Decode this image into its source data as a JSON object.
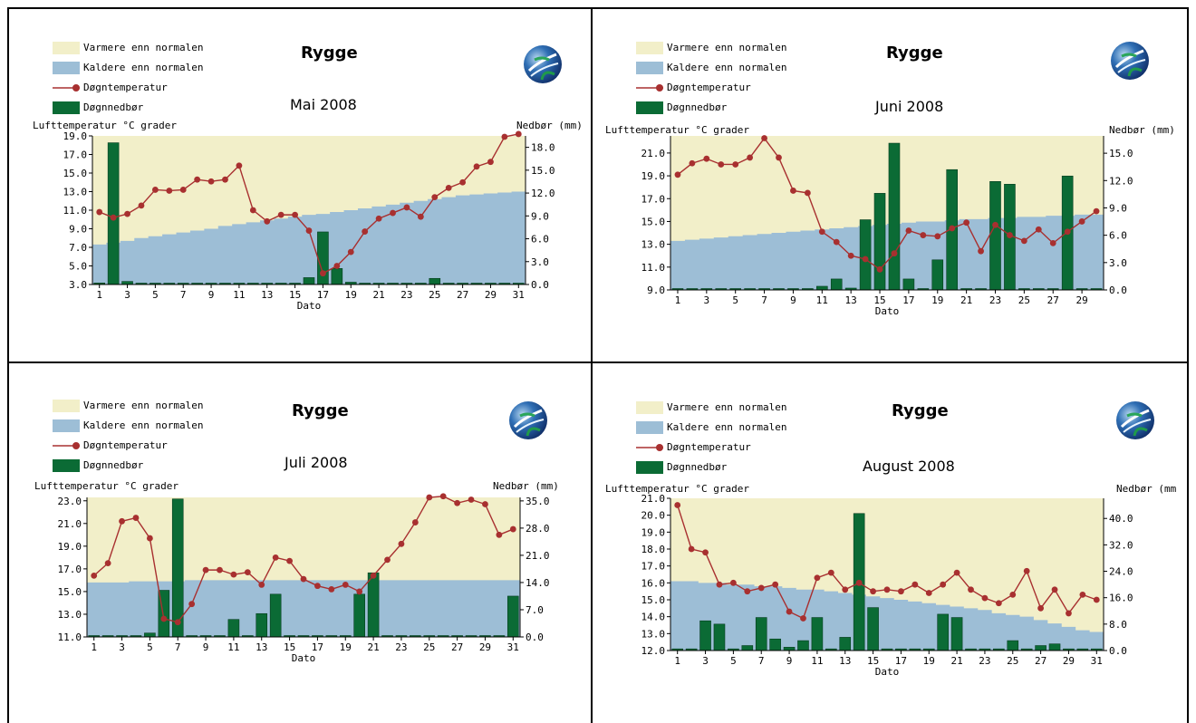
{
  "legend": {
    "warmer": "Varmere enn normalen",
    "colder": "Kaldere enn  normalen",
    "temp": "Døgntemperatur",
    "precip": "Døgnnedbør"
  },
  "colors": {
    "warmer": "#f2efc9",
    "colder": "#9dbed6",
    "temp": "#a83030",
    "precip": "#0b6b35"
  },
  "icons": [
    "globe-logo-icon"
  ],
  "chart_data": [
    {
      "type": "bar+line",
      "title": "Rygge",
      "subtitle": "Mai 2008",
      "ylabel": "Lufttemperatur °C grader",
      "y2label": "Nedbør (mm)",
      "xlabel": "Dato",
      "ylim": [
        3.0,
        19.0
      ],
      "yticks": [
        "19.0",
        "17.0",
        "15.0",
        "13.0",
        "11.0",
        "9.0",
        "7.0",
        "5.0",
        "3.0"
      ],
      "y2lim": [
        0,
        19.5
      ],
      "y2ticks": [
        "18.0",
        "15.0",
        "12.0",
        "9.0",
        "6.0",
        "3.0",
        "0.0"
      ],
      "xticks": [
        "1",
        "3",
        "5",
        "7",
        "9",
        "11",
        "13",
        "15",
        "17",
        "19",
        "21",
        "23",
        "25",
        "27",
        "29",
        "31"
      ],
      "temperature": [
        10.8,
        10.2,
        10.6,
        11.5,
        13.2,
        13.1,
        13.2,
        14.3,
        14.1,
        14.3,
        15.8,
        11.0,
        9.8,
        10.5,
        10.5,
        8.8,
        4.2,
        5.0,
        6.5,
        8.7,
        10.1,
        10.7,
        11.3,
        10.3,
        12.4,
        13.4,
        14.0,
        15.7,
        16.2,
        18.9,
        19.2
      ],
      "normal": [
        7.3,
        7.5,
        7.7,
        8.0,
        8.2,
        8.4,
        8.6,
        8.8,
        9.0,
        9.3,
        9.5,
        9.7,
        9.9,
        10.1,
        10.3,
        10.5,
        10.6,
        10.8,
        11.0,
        11.2,
        11.4,
        11.6,
        11.8,
        12.0,
        12.2,
        12.4,
        12.6,
        12.7,
        12.8,
        12.9,
        13.0
      ],
      "precipitation": [
        0.2,
        18.6,
        0.4,
        0.1,
        0.0,
        0.0,
        0.0,
        0.0,
        0.0,
        0.0,
        0.0,
        0.0,
        0.0,
        0.0,
        0.0,
        0.9,
        6.9,
        2.1,
        0.3,
        0.0,
        0.0,
        0.0,
        0.0,
        0.0,
        0.8,
        0.0,
        0.0,
        0.0,
        0.0,
        0.0,
        0.0
      ]
    },
    {
      "type": "bar+line",
      "title": "Rygge",
      "subtitle": "Juni 2008",
      "ylabel": "Lufttemperatur °C grader",
      "y2label": "Nedbør (mm)",
      "xlabel": "Dato",
      "ylim": [
        9.0,
        22.5
      ],
      "yticks": [
        "21.0",
        "19.0",
        "17.0",
        "15.0",
        "13.0",
        "11.0",
        "9.0"
      ],
      "y2lim": [
        0,
        16.9
      ],
      "y2ticks": [
        "15.0",
        "12.0",
        "9.0",
        "6.0",
        "3.0",
        "0.0"
      ],
      "xticks": [
        "1",
        "3",
        "5",
        "7",
        "9",
        "11",
        "13",
        "15",
        "17",
        "19",
        "21",
        "23",
        "25",
        "27",
        "29"
      ],
      "temperature": [
        19.1,
        20.1,
        20.5,
        20.0,
        20.0,
        20.6,
        22.3,
        20.6,
        17.7,
        17.5,
        14.1,
        13.2,
        12.0,
        11.7,
        10.8,
        12.2,
        14.2,
        13.8,
        13.7,
        14.4,
        14.9,
        12.4,
        14.7,
        13.8,
        13.3,
        14.3,
        13.1,
        14.1,
        15.0,
        15.9
      ],
      "normal": [
        13.3,
        13.4,
        13.5,
        13.6,
        13.7,
        13.8,
        13.9,
        14.0,
        14.1,
        14.2,
        14.3,
        14.4,
        14.5,
        14.6,
        14.7,
        14.8,
        14.9,
        15.0,
        15.0,
        15.1,
        15.2,
        15.2,
        15.3,
        15.3,
        15.4,
        15.4,
        15.5,
        15.5,
        15.6,
        15.6
      ],
      "precipitation": [
        0.1,
        0.0,
        0.0,
        0.0,
        0.0,
        0.0,
        0.0,
        0.0,
        0.0,
        0.0,
        0.4,
        1.2,
        0.2,
        7.7,
        10.6,
        16.1,
        1.2,
        0.0,
        3.3,
        13.2,
        0.0,
        0.0,
        11.9,
        11.6,
        0.0,
        0.0,
        0.0,
        12.5,
        0.0,
        0.1
      ]
    },
    {
      "type": "bar+line",
      "title": "Rygge",
      "subtitle": "Juli 2008",
      "ylabel": "Lufttemperatur °C grader",
      "y2label": "Nedbør (mm)",
      "xlabel": "Dato",
      "ylim": [
        11.0,
        23.3
      ],
      "yticks": [
        "23.0",
        "21.0",
        "19.0",
        "17.0",
        "15.0",
        "13.0",
        "11.0"
      ],
      "y2lim": [
        0,
        35.9
      ],
      "y2ticks": [
        "35.0",
        "28.0",
        "21.0",
        "14.0",
        "7.0",
        "0.0"
      ],
      "xticks": [
        "1",
        "3",
        "5",
        "7",
        "9",
        "11",
        "13",
        "15",
        "17",
        "19",
        "21",
        "23",
        "25",
        "27",
        "29",
        "31"
      ],
      "temperature": [
        16.4,
        17.5,
        21.2,
        21.5,
        19.7,
        12.6,
        12.3,
        13.9,
        16.9,
        16.9,
        16.5,
        16.7,
        15.6,
        18.0,
        17.7,
        16.1,
        15.5,
        15.2,
        15.6,
        15.0,
        16.4,
        17.8,
        19.2,
        21.1,
        23.3,
        23.4,
        22.8,
        23.1,
        22.7,
        20.0,
        20.5
      ],
      "normal": [
        15.8,
        15.8,
        15.8,
        15.9,
        15.9,
        15.9,
        15.9,
        16.0,
        16.0,
        16.0,
        16.0,
        16.0,
        16.0,
        16.0,
        16.0,
        16.0,
        16.0,
        16.0,
        16.0,
        16.0,
        16.0,
        16.0,
        16.0,
        16.0,
        16.0,
        16.0,
        16.0,
        16.0,
        16.0,
        16.0,
        16.0
      ],
      "precipitation": [
        0.0,
        0.0,
        0.0,
        0.0,
        1.0,
        12.0,
        35.5,
        0.0,
        0.0,
        0.0,
        4.5,
        0.0,
        6.0,
        11.0,
        0.0,
        0.0,
        0.0,
        0.0,
        0.0,
        11.0,
        16.5,
        0.0,
        0.0,
        0.0,
        0.0,
        0.0,
        0.0,
        0.0,
        0.0,
        0.0,
        10.5
      ]
    },
    {
      "type": "bar+line",
      "title": "Rygge",
      "subtitle": "August 2008",
      "ylabel": "Lufttemperatur °C grader",
      "y2label": "Nedbør (mm)",
      "xlabel": "Dato",
      "ylim": [
        12.0,
        21.0
      ],
      "yticks": [
        "21.0",
        "20.0",
        "19.0",
        "18.0",
        "17.0",
        "16.0",
        "15.0",
        "14.0",
        "13.0",
        "12.0"
      ],
      "y2lim": [
        0,
        46.1
      ],
      "y2ticks": [
        "40.0",
        "32.0",
        "24.0",
        "16.0",
        "8.0",
        "0.0"
      ],
      "xticks": [
        "1",
        "3",
        "5",
        "7",
        "9",
        "11",
        "13",
        "15",
        "17",
        "19",
        "21",
        "23",
        "25",
        "27",
        "29",
        "31"
      ],
      "temperature": [
        20.6,
        18.0,
        17.8,
        15.9,
        16.0,
        15.5,
        15.7,
        15.9,
        14.3,
        13.9,
        16.3,
        16.6,
        15.6,
        16.0,
        15.5,
        15.6,
        15.5,
        15.9,
        15.4,
        15.9,
        16.6,
        15.6,
        15.1,
        14.8,
        15.3,
        16.7,
        14.5,
        15.6,
        14.2,
        15.3,
        15.0
      ],
      "normal": [
        16.1,
        16.1,
        16.0,
        16.0,
        15.9,
        15.9,
        15.8,
        15.8,
        15.7,
        15.6,
        15.6,
        15.5,
        15.4,
        15.3,
        15.2,
        15.1,
        15.0,
        14.9,
        14.8,
        14.7,
        14.6,
        14.5,
        14.4,
        14.2,
        14.1,
        14.0,
        13.8,
        13.6,
        13.4,
        13.2,
        13.1
      ],
      "precipitation": [
        0.5,
        0.5,
        9.0,
        8.0,
        0.5,
        1.5,
        10.0,
        3.5,
        1.0,
        3.0,
        10.0,
        0.5,
        4.0,
        41.5,
        13.0,
        0.5,
        0.5,
        0.5,
        0.5,
        11.0,
        10.0,
        0.5,
        0.5,
        0.5,
        3.0,
        0.5,
        1.5,
        2.0,
        0.5,
        0.5,
        0.5
      ]
    }
  ]
}
